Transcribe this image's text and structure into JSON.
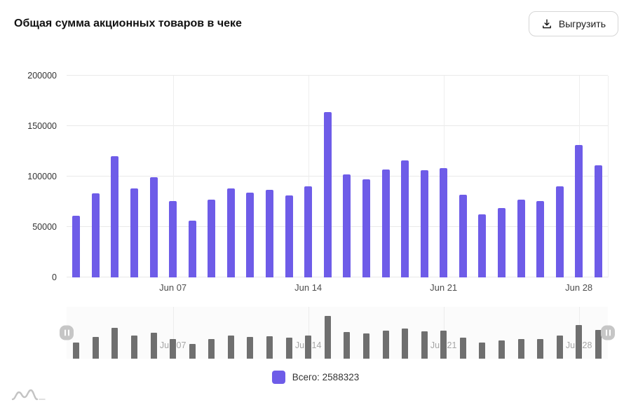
{
  "header": {
    "title": "Общая сумма акционных товаров в чеке",
    "export_button_label": "Выгрузить"
  },
  "legend": {
    "label": "Всего: 2588323"
  },
  "colors": {
    "bar": "#6e5ce8",
    "navigator_bar": "#6f6f6f",
    "grid": "#e9e9e9",
    "axis_text": "#4d4d4d"
  },
  "chart_data": {
    "type": "bar",
    "title": "Общая сумма акционных товаров в чеке",
    "series_name": "Всего",
    "total": 2588323,
    "x": [
      "Jun 02",
      "Jun 03",
      "Jun 04",
      "Jun 05",
      "Jun 06",
      "Jun 07",
      "Jun 08",
      "Jun 09",
      "Jun 10",
      "Jun 11",
      "Jun 12",
      "Jun 13",
      "Jun 14",
      "Jun 15",
      "Jun 16",
      "Jun 17",
      "Jun 18",
      "Jun 19",
      "Jun 20",
      "Jun 21",
      "Jun 22",
      "Jun 23",
      "Jun 24",
      "Jun 25",
      "Jun 26",
      "Jun 27",
      "Jun 28",
      "Jun 29"
    ],
    "values": [
      61000,
      83000,
      120000,
      88000,
      99000,
      76000,
      56000,
      77000,
      88000,
      84000,
      87000,
      81000,
      90000,
      164000,
      102000,
      97000,
      107000,
      116000,
      106000,
      108000,
      82000,
      62323,
      69000,
      77000,
      76000,
      90000,
      131000,
      111000
    ],
    "tick_indices": [
      5,
      12,
      19,
      26
    ],
    "tick_labels": [
      "Jun 07",
      "Jun 14",
      "Jun 21",
      "Jun 28"
    ],
    "y_ticks": [
      0,
      50000,
      100000,
      150000,
      200000
    ],
    "ylim": [
      0,
      200000
    ],
    "grid": true,
    "legend_position": "bottom",
    "navigator": true
  }
}
